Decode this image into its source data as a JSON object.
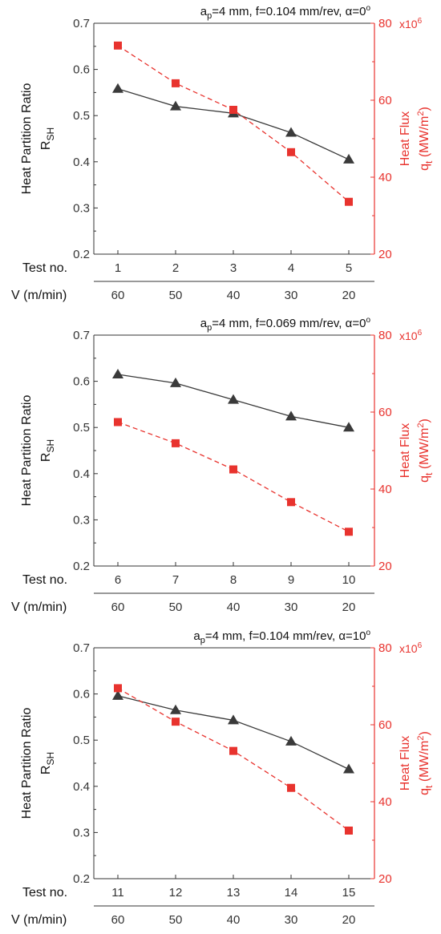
{
  "colors": {
    "ratio": "#3a3a3a",
    "flux": "#e8332e",
    "axis": "#333333"
  },
  "chart_data": [
    {
      "type": "line",
      "condition": {
        "a": "a",
        "p": "p",
        "ap_val": "=4 mm, f=0.104 mm/rev, ",
        "alpha": "α=0",
        "deg": "o"
      },
      "row1_label": "Test no.",
      "row2_label": "V (m/min)",
      "tests": [
        "1",
        "2",
        "3",
        "4",
        "5"
      ],
      "speeds": [
        "60",
        "50",
        "40",
        "30",
        "20"
      ],
      "left_axis": {
        "line1": "Heat Partition Ratio",
        "main": "R",
        "sub": "SH",
        "ylim": [
          0.2,
          0.7
        ],
        "ticks": [
          "0.2",
          "0.3",
          "0.4",
          "0.5",
          "0.6",
          "0.7"
        ]
      },
      "right_axis": {
        "line1": "Heat Flux",
        "main": "q",
        "sub": "t",
        "unit_open": " (MW/m",
        "unit_sup": "2",
        "unit_close": ")",
        "ylim": [
          20,
          80
        ],
        "ticks": [
          "20",
          "40",
          "60",
          "80"
        ],
        "mult_base": "x10",
        "mult_exp": "6"
      },
      "series": [
        {
          "axis": "left",
          "marker": "triangle",
          "style": "solid",
          "values": [
            0.558,
            0.52,
            0.505,
            0.463,
            0.405
          ]
        },
        {
          "axis": "right",
          "marker": "square",
          "style": "dashed",
          "values": [
            74.2,
            64.4,
            57.5,
            46.5,
            33.6
          ]
        }
      ]
    },
    {
      "type": "line",
      "condition": {
        "a": "a",
        "p": "p",
        "ap_val": "=4 mm, f=0.069 mm/rev, ",
        "alpha": "α=0",
        "deg": "o"
      },
      "row1_label": "Test no.",
      "row2_label": "V (m/min)",
      "tests": [
        "6",
        "7",
        "8",
        "9",
        "10"
      ],
      "speeds": [
        "60",
        "50",
        "40",
        "30",
        "20"
      ],
      "left_axis": {
        "line1": "Heat Partition Ratio",
        "main": "R",
        "sub": "SH",
        "ylim": [
          0.2,
          0.7
        ],
        "ticks": [
          "0.2",
          "0.3",
          "0.4",
          "0.5",
          "0.6",
          "0.7"
        ]
      },
      "right_axis": {
        "line1": "Heat Flux",
        "main": "q",
        "sub": "t",
        "unit_open": " (MW/m",
        "unit_sup": "2",
        "unit_close": ")",
        "ylim": [
          20,
          80
        ],
        "ticks": [
          "20",
          "40",
          "60",
          "80"
        ],
        "mult_base": "x10",
        "mult_exp": "6"
      },
      "series": [
        {
          "axis": "left",
          "marker": "triangle",
          "style": "solid",
          "values": [
            0.615,
            0.596,
            0.56,
            0.524,
            0.5
          ]
        },
        {
          "axis": "right",
          "marker": "square",
          "style": "dashed",
          "values": [
            57.4,
            51.9,
            45.1,
            36.6,
            28.9
          ]
        }
      ]
    },
    {
      "type": "line",
      "condition": {
        "a": "a",
        "p": "p",
        "ap_val": "=4 mm, f=0.104 mm/rev, ",
        "alpha": "α=10",
        "deg": "o"
      },
      "row1_label": "Test no.",
      "row2_label": "V (m/min)",
      "tests": [
        "11",
        "12",
        "13",
        "14",
        "15"
      ],
      "speeds": [
        "60",
        "50",
        "40",
        "30",
        "20"
      ],
      "left_axis": {
        "line1": "Heat Partition Ratio",
        "main": "R",
        "sub": "SH",
        "ylim": [
          0.2,
          0.7
        ],
        "ticks": [
          "0.2",
          "0.3",
          "0.4",
          "0.5",
          "0.6",
          "0.7"
        ]
      },
      "right_axis": {
        "line1": "Heat Flux",
        "main": "q",
        "sub": "t",
        "unit_open": " (MW/m",
        "unit_sup": "2",
        "unit_close": ")",
        "ylim": [
          20,
          80
        ],
        "ticks": [
          "20",
          "40",
          "60",
          "80"
        ],
        "mult_base": "x10",
        "mult_exp": "6"
      },
      "series": [
        {
          "axis": "left",
          "marker": "triangle",
          "style": "solid",
          "values": [
            0.596,
            0.565,
            0.543,
            0.497,
            0.437
          ]
        },
        {
          "axis": "right",
          "marker": "square",
          "style": "dashed",
          "values": [
            69.5,
            60.8,
            53.2,
            43.6,
            32.5
          ]
        }
      ]
    }
  ]
}
